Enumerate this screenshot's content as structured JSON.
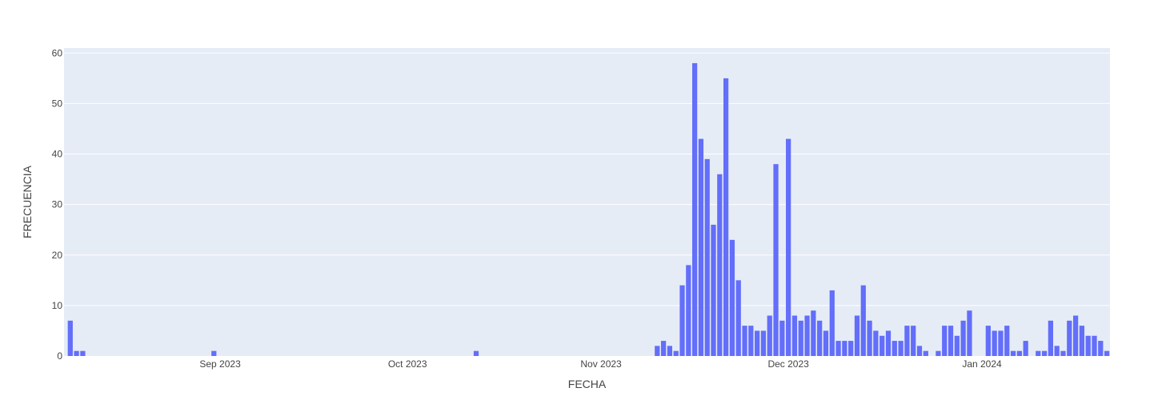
{
  "colors": {
    "plot_background": "#e5ecf6",
    "gridline": "#ffffff",
    "bar": "#636efa",
    "text": "#444444"
  },
  "chart_data": {
    "type": "bar",
    "xlabel": "FECHA",
    "ylabel": "FRECUENCIA",
    "xlim": [
      "2023-08-07",
      "2024-01-21"
    ],
    "ylim": [
      0,
      61
    ],
    "yticks": [
      0,
      10,
      20,
      30,
      40,
      50,
      60
    ],
    "xticks": [
      {
        "date": "2023-09-01",
        "label": "Sep 2023"
      },
      {
        "date": "2023-10-01",
        "label": "Oct 2023"
      },
      {
        "date": "2023-11-01",
        "label": "Nov 2023"
      },
      {
        "date": "2023-12-01",
        "label": "Dec 2023"
      },
      {
        "date": "2024-01-01",
        "label": "Jan 2024"
      }
    ],
    "grid": true,
    "legend": "none",
    "x": [
      "2023-08-08",
      "2023-08-09",
      "2023-08-10",
      "2023-08-31",
      "2023-10-12",
      "2023-11-10",
      "2023-11-11",
      "2023-11-12",
      "2023-11-13",
      "2023-11-14",
      "2023-11-15",
      "2023-11-16",
      "2023-11-17",
      "2023-11-18",
      "2023-11-19",
      "2023-11-20",
      "2023-11-21",
      "2023-11-22",
      "2023-11-23",
      "2023-11-24",
      "2023-11-25",
      "2023-11-26",
      "2023-11-27",
      "2023-11-28",
      "2023-11-29",
      "2023-11-30",
      "2023-12-01",
      "2023-12-02",
      "2023-12-03",
      "2023-12-04",
      "2023-12-05",
      "2023-12-06",
      "2023-12-07",
      "2023-12-08",
      "2023-12-09",
      "2023-12-10",
      "2023-12-11",
      "2023-12-12",
      "2023-12-13",
      "2023-12-14",
      "2023-12-15",
      "2023-12-16",
      "2023-12-17",
      "2023-12-18",
      "2023-12-19",
      "2023-12-20",
      "2023-12-21",
      "2023-12-22",
      "2023-12-23",
      "2023-12-25",
      "2023-12-26",
      "2023-12-27",
      "2023-12-28",
      "2023-12-29",
      "2023-12-30",
      "2024-01-02",
      "2024-01-03",
      "2024-01-04",
      "2024-01-05",
      "2024-01-06",
      "2024-01-07",
      "2024-01-08",
      "2024-01-10",
      "2024-01-11",
      "2024-01-12",
      "2024-01-13",
      "2024-01-14",
      "2024-01-15",
      "2024-01-16",
      "2024-01-17",
      "2024-01-18",
      "2024-01-19",
      "2024-01-20",
      "2024-01-21"
    ],
    "values": [
      7,
      1,
      1,
      1,
      1,
      2,
      3,
      2,
      1,
      14,
      18,
      58,
      43,
      39,
      26,
      36,
      55,
      23,
      15,
      6,
      6,
      5,
      5,
      8,
      38,
      7,
      43,
      8,
      7,
      8,
      9,
      7,
      5,
      13,
      3,
      3,
      3,
      8,
      14,
      7,
      5,
      4,
      5,
      3,
      3,
      6,
      6,
      2,
      1,
      1,
      6,
      6,
      4,
      7,
      9,
      6,
      5,
      5,
      6,
      1,
      1,
      3,
      1,
      1,
      7,
      2,
      1,
      7,
      8,
      6,
      4,
      4,
      3,
      1
    ]
  }
}
